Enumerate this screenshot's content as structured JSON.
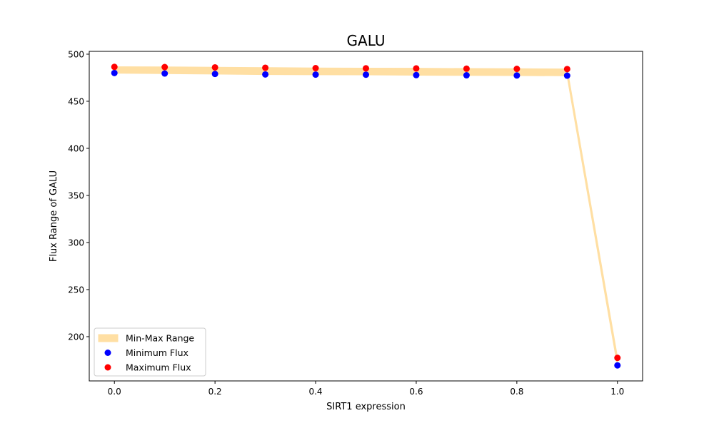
{
  "chart_data": {
    "type": "scatter",
    "title": "GALU",
    "xlabel": "SIRT1 expression",
    "ylabel": "Flux Range of GALU",
    "xlim": [
      -0.05,
      1.05
    ],
    "ylim": [
      153,
      503
    ],
    "xticks": [
      0.0,
      0.2,
      0.4,
      0.6,
      0.8,
      1.0
    ],
    "xtick_labels": [
      "0.0",
      "0.2",
      "0.4",
      "0.6",
      "0.8",
      "1.0"
    ],
    "yticks": [
      200,
      250,
      300,
      350,
      400,
      450,
      500
    ],
    "ytick_labels": [
      "200",
      "250",
      "300",
      "350",
      "400",
      "450",
      "500"
    ],
    "x": [
      0.0,
      0.1,
      0.2,
      0.3,
      0.4,
      0.5,
      0.6,
      0.7,
      0.8,
      0.9,
      1.0
    ],
    "band": {
      "name": "Min-Max Range",
      "color": "#ffdfa3"
    },
    "series": [
      {
        "name": "Minimum Flux",
        "color": "#0000ff",
        "values": [
          480,
          479.5,
          479,
          478.5,
          478.3,
          478.2,
          477.8,
          477.6,
          477.4,
          477.2,
          169.5
        ]
      },
      {
        "name": "Maximum Flux",
        "color": "#ff0000",
        "values": [
          486.5,
          486.3,
          486,
          485.6,
          485.2,
          485,
          484.9,
          484.6,
          484.4,
          484.2,
          177.5
        ]
      }
    ],
    "legend": {
      "position": "lower-left",
      "entries": [
        "Min-Max Range",
        "Minimum Flux",
        "Maximum Flux"
      ]
    },
    "grid": false
  }
}
